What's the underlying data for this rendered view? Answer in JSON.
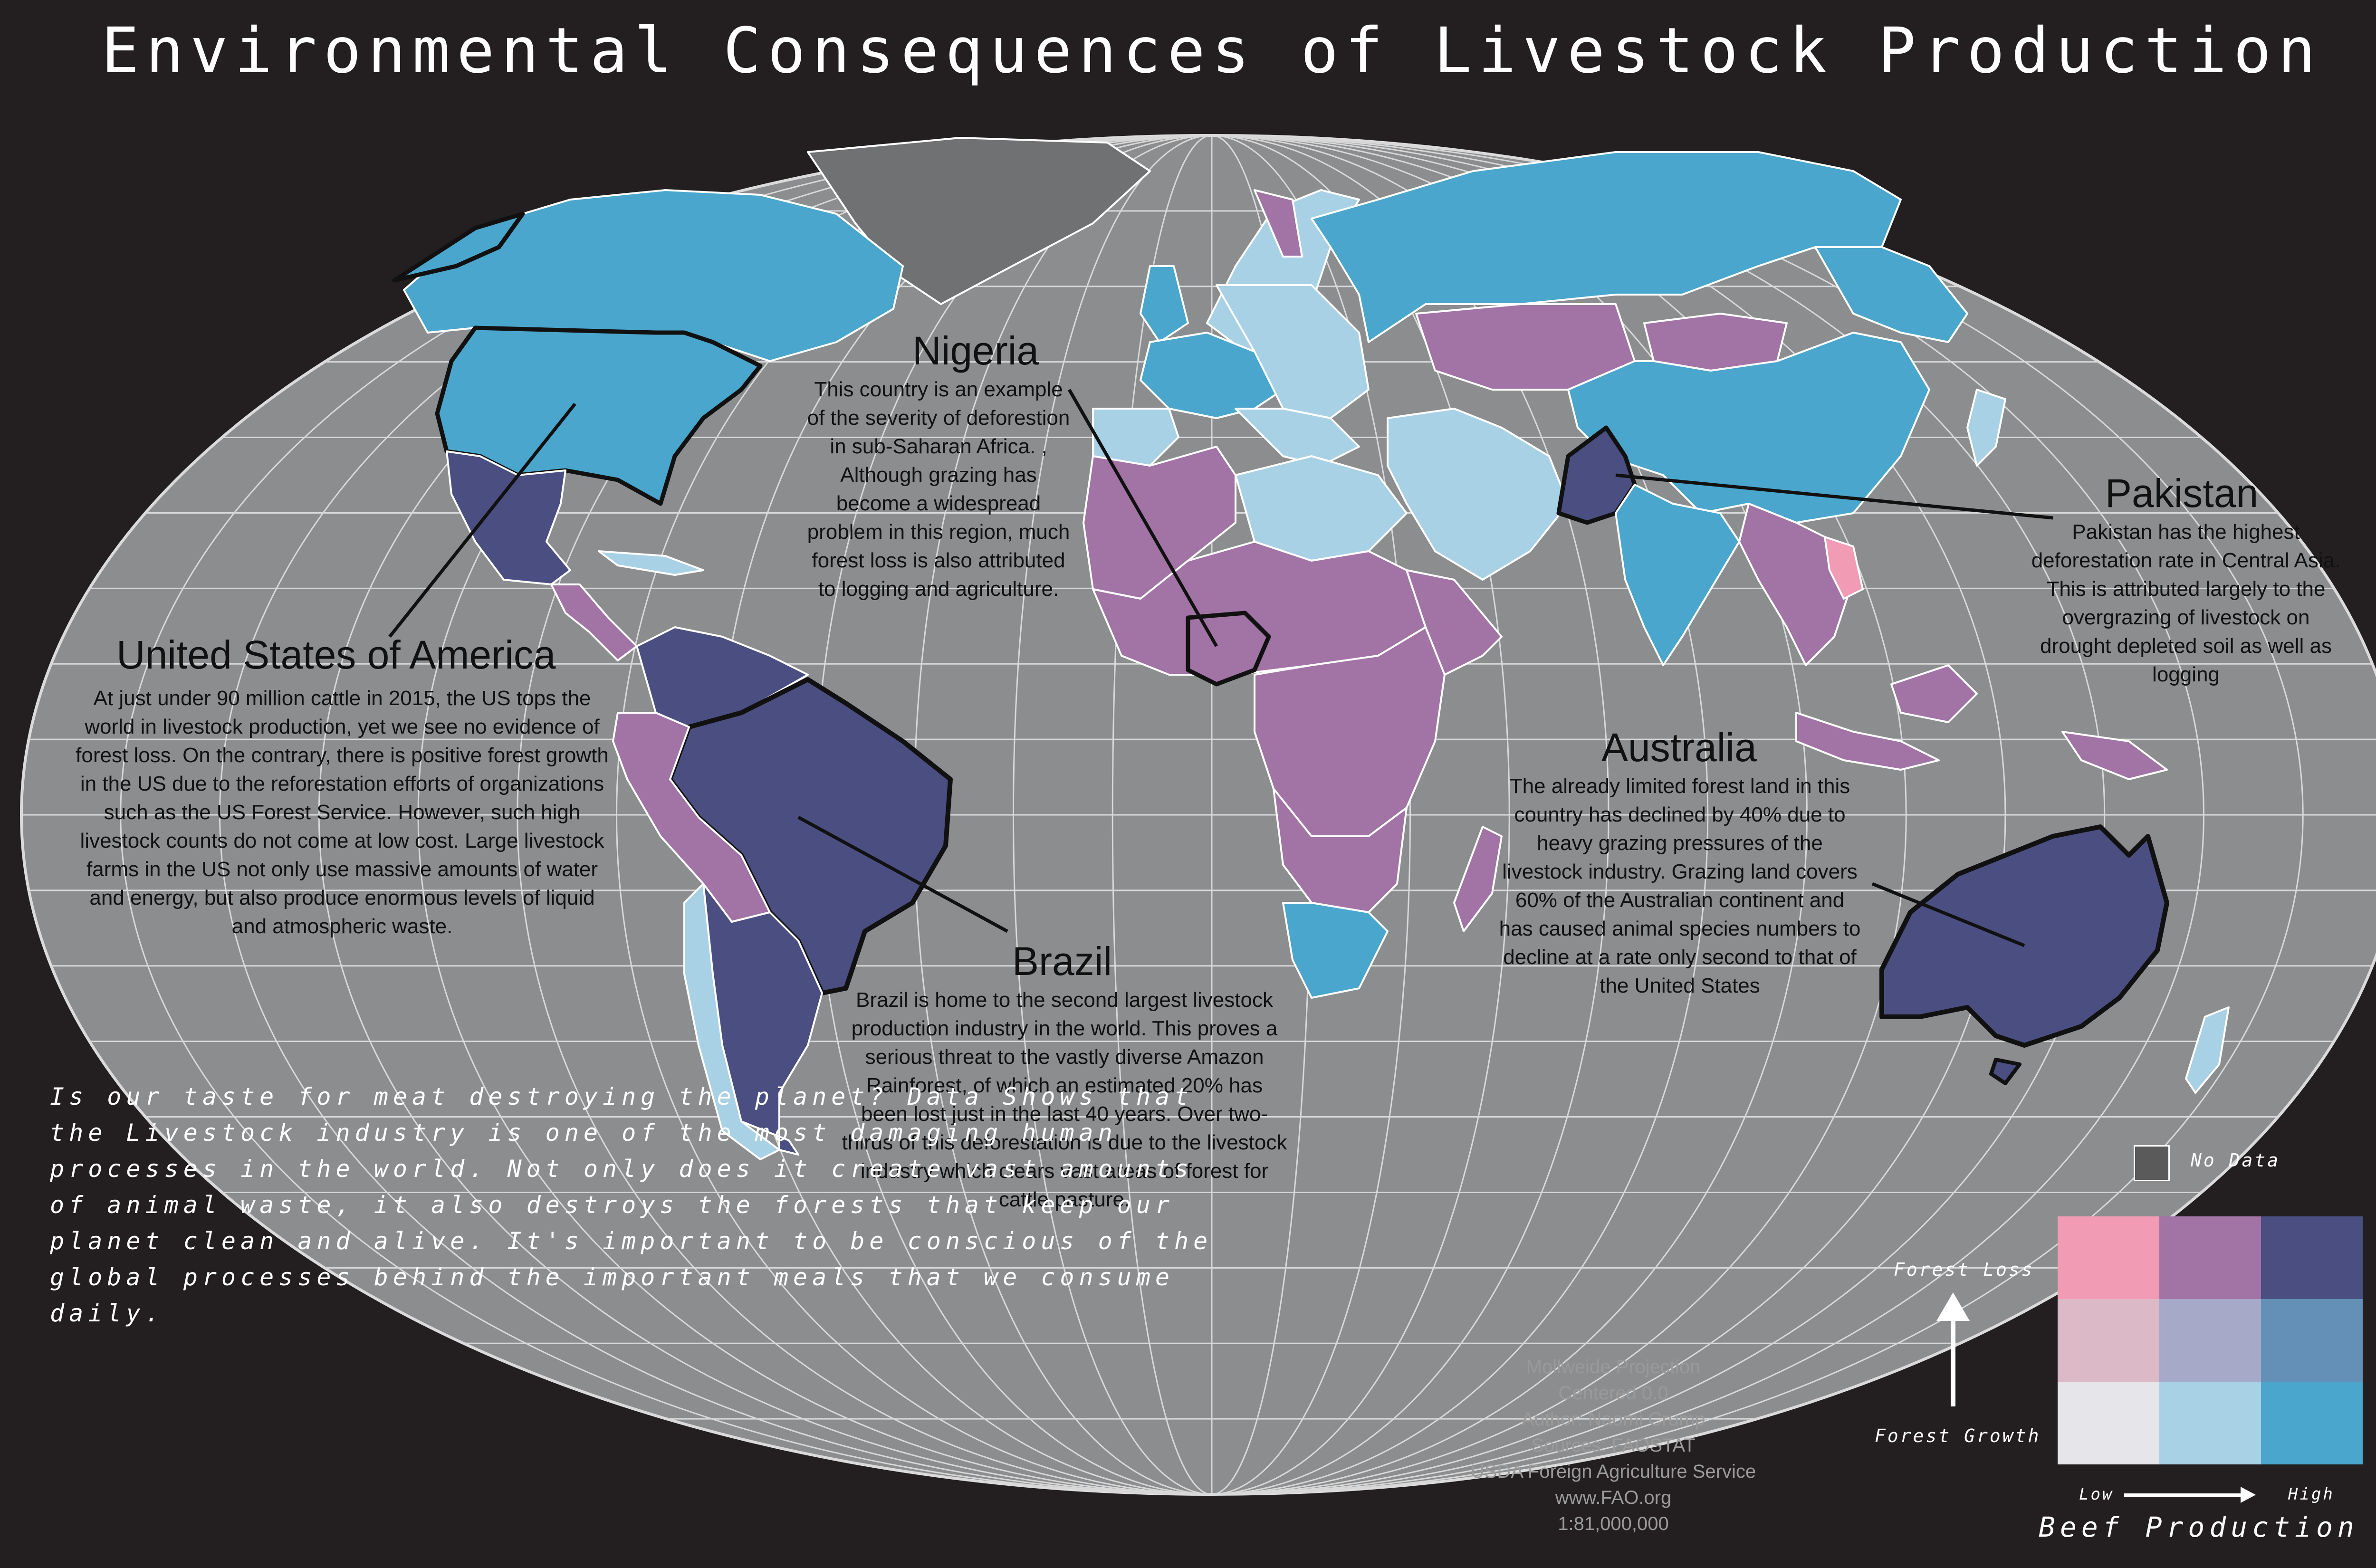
{
  "title": "Environmental Consequences of Livestock Production",
  "callouts": [
    {
      "id": "usa",
      "title": "United States of America",
      "body": "At just under 90 million cattle in 2015, the US tops the world in livestock production, yet we see no evidence of forest loss. On the contrary, there is positive forest growth in the US due to the reforestation efforts of organizations such as the US Forest Service. However, such high livestock counts do not come at low cost. Large livestock farms in the US not only use massive amounts of water and energy, but also produce enormous levels of liquid and atmospheric waste."
    },
    {
      "id": "nigeria",
      "title": "Nigeria",
      "body": "This country is an example of the severity of deforestion in sub-Saharan Africa. , Although grazing has become a widespread problem in this region, much forest loss is also attributed to logging and agriculture."
    },
    {
      "id": "brazil",
      "title": "Brazil",
      "body": "Brazil is home to the second largest livestock production industry in the world. This proves a serious threat to the vastly diverse Amazon Rainforest, of which an estimated 20% has been lost just in the last 40 years. Over two-thirds of this deforestation is due to the livestock industry which clears vast areas of forest for cattle pasture."
    },
    {
      "id": "australia",
      "title": "Australia",
      "body": "The already limited forest land in this country has declined by 40% due to heavy grazing pressures of the livestock industry. Grazing land covers 60% of the Australian continent and has caused animal species numbers to decline at a rate only second to that of the United States"
    },
    {
      "id": "pakistan",
      "title": "Pakistan",
      "body": "Pakistan has the highest deforestation rate in Central Asia. This is attributed largely to the overgrazing of livestock on drought depleted soil as well as logging"
    }
  ],
  "question": "Is our taste for meat destroying the planet? Data Shows that the Livestock industry is one of the most damaging human processes in the world. Not only does it create vast amounts of animal waste, it also destroys the forests that keep our planet clean and alive. It's important to be conscious of the global processes behind the important meals that we consume daily.",
  "credits": [
    "Mollweide Projection",
    "Centered 0.0",
    "Author: Naomi Crump",
    "Sources: FAOSTAT",
    "USDA Foreign Agriculture Service",
    "www.FAO.org",
    "1:81,000,000"
  ],
  "legend": {
    "no_data": "No Data",
    "forest_loss": "Forest Loss",
    "forest_growth": "Forest Growth",
    "low": "Low",
    "high": "High",
    "beef_production": "Beef Production",
    "no_data_color": "#5a5a5a",
    "grid_colors": [
      [
        "#f19bb5",
        "#a274a6",
        "#4a4e80"
      ],
      [
        "#dcb9c6",
        "#a6a9c8",
        "#6490b8"
      ],
      [
        "#e6e6ea",
        "#a9d1e6",
        "#4aa6cc"
      ]
    ]
  },
  "colors": {
    "background": "#231f20",
    "ocean": "#8c8d8f",
    "no_data_land": "#707173",
    "graticule": "#d8d8d8"
  }
}
